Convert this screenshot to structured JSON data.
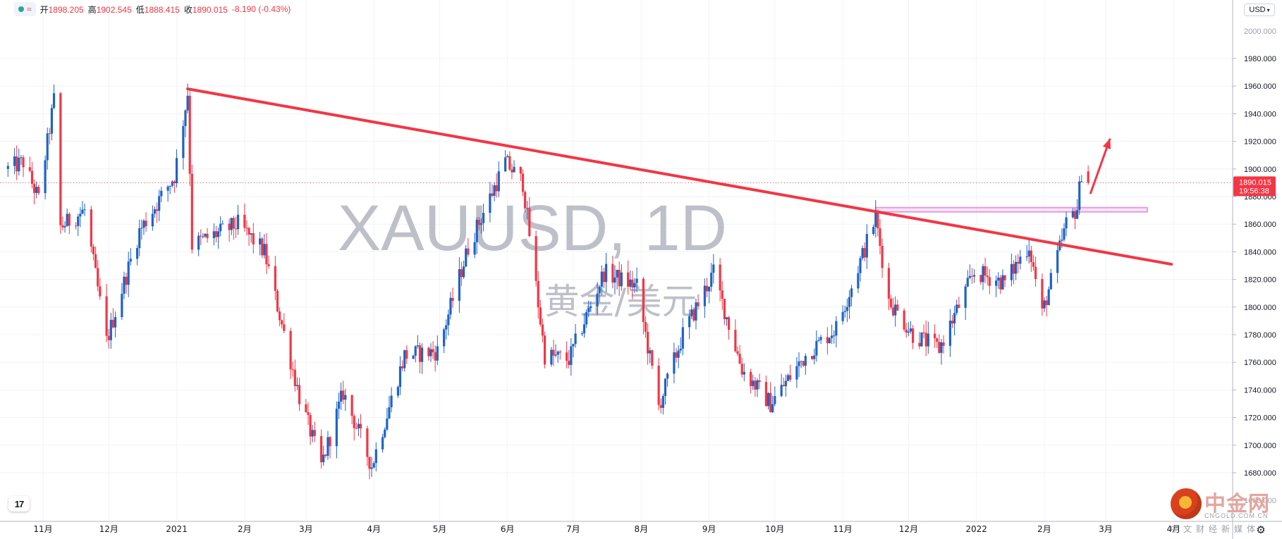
{
  "legend": {
    "open_label": "开",
    "open_value": "1898.205",
    "high_label": "高",
    "high_value": "1902.545",
    "low_label": "低",
    "low_value": "1888.415",
    "close_label": "收",
    "close_value": "1890.015",
    "change": "-8.190 (-0.43%)"
  },
  "currency": "USD",
  "watermark": {
    "symbol": "XAUUSD, 1D",
    "name": "黄金/美元"
  },
  "price_tag": {
    "price": "1890.015",
    "time": "19:56:38"
  },
  "brand": {
    "name": "中金网",
    "url": "CNGOLD.COM.CN",
    "sub": "中文财经新媒体"
  },
  "colors": {
    "up": "#1e63c6",
    "down": "#f23645",
    "trendline": "#f23645",
    "zone": "#e59be0",
    "axis_text": "#131722"
  },
  "chart_data": {
    "type": "candlestick",
    "symbol": "XAUUSD",
    "interval": "1D",
    "ylim": [
      1660,
      2000
    ],
    "yticks": [
      1680,
      1700,
      1720,
      1740,
      1760,
      1780,
      1800,
      1820,
      1840,
      1860,
      1880,
      1900,
      1920,
      1940,
      1960,
      1980
    ],
    "ytick_labels": [
      "1680.000",
      "1700.000",
      "1720.000",
      "1740.000",
      "1760.000",
      "1780.000",
      "1800.000",
      "1820.000",
      "1840.000",
      "1860.000",
      "1880.000",
      "1900.000",
      "1920.000",
      "1940.000",
      "1960.000",
      "1980.000"
    ],
    "xaxis_labels": [
      "11月",
      "12月",
      "2021",
      "2月",
      "3月",
      "4月",
      "5月",
      "6月",
      "7月",
      "8月",
      "9月",
      "10月",
      "11月",
      "12月",
      "2022",
      "2月",
      "3月",
      "4月"
    ],
    "xaxis_dates": [
      "2020-11-01",
      "2020-12-01",
      "2021-01-01",
      "2021-02-01",
      "2021-03-01",
      "2021-04-01",
      "2021-05-01",
      "2021-06-01",
      "2021-07-01",
      "2021-08-01",
      "2021-09-01",
      "2021-10-01",
      "2021-11-01",
      "2021-12-01",
      "2022-01-01",
      "2022-02-01",
      "2022-03-01",
      "2022-04-01"
    ],
    "last_price": 1890.015,
    "price_path": [
      [
        "2020-10-16",
        1900
      ],
      [
        "2020-10-23",
        1905
      ],
      [
        "2020-10-30",
        1878
      ],
      [
        "2020-11-06",
        1950
      ],
      [
        "2020-11-09",
        1858
      ],
      [
        "2020-11-20",
        1870
      ],
      [
        "2020-11-30",
        1775
      ],
      [
        "2020-12-15",
        1855
      ],
      [
        "2020-12-31",
        1895
      ],
      [
        "2021-01-06",
        1955
      ],
      [
        "2021-01-08",
        1845
      ],
      [
        "2021-01-29",
        1860
      ],
      [
        "2021-02-10",
        1840
      ],
      [
        "2021-02-26",
        1735
      ],
      [
        "2021-03-08",
        1685
      ],
      [
        "2021-03-18",
        1738
      ],
      [
        "2021-03-31",
        1685
      ],
      [
        "2021-04-15",
        1765
      ],
      [
        "2021-04-30",
        1768
      ],
      [
        "2021-05-14",
        1843
      ],
      [
        "2021-05-31",
        1905
      ],
      [
        "2021-06-08",
        1890
      ],
      [
        "2021-06-18",
        1765
      ],
      [
        "2021-06-29",
        1762
      ],
      [
        "2021-07-15",
        1825
      ],
      [
        "2021-07-30",
        1815
      ],
      [
        "2021-08-09",
        1728
      ],
      [
        "2021-08-20",
        1780
      ],
      [
        "2021-09-03",
        1825
      ],
      [
        "2021-09-16",
        1755
      ],
      [
        "2021-09-29",
        1730
      ],
      [
        "2021-10-15",
        1765
      ],
      [
        "2021-10-29",
        1785
      ],
      [
        "2021-11-05",
        1815
      ],
      [
        "2021-11-16",
        1865
      ],
      [
        "2021-11-22",
        1805
      ],
      [
        "2021-12-03",
        1780
      ],
      [
        "2021-12-15",
        1770
      ],
      [
        "2021-12-31",
        1825
      ],
      [
        "2022-01-14",
        1818
      ],
      [
        "2022-01-25",
        1845
      ],
      [
        "2022-01-31",
        1795
      ],
      [
        "2022-02-11",
        1860
      ],
      [
        "2022-02-16",
        1872
      ],
      [
        "2022-02-18",
        1898
      ],
      [
        "2022-02-21",
        1890
      ]
    ],
    "trendline": {
      "points": [
        [
          "2021-01-06",
          1958
        ],
        [
          "2022-03-31",
          1831
        ]
      ]
    },
    "zone": {
      "x": [
        "2021-11-16",
        "2022-03-20"
      ],
      "y": [
        1869,
        1872
      ]
    },
    "arrow": {
      "points": [
        [
          "2022-02-22",
          1882
        ],
        [
          "2022-03-03",
          1922
        ]
      ]
    }
  }
}
